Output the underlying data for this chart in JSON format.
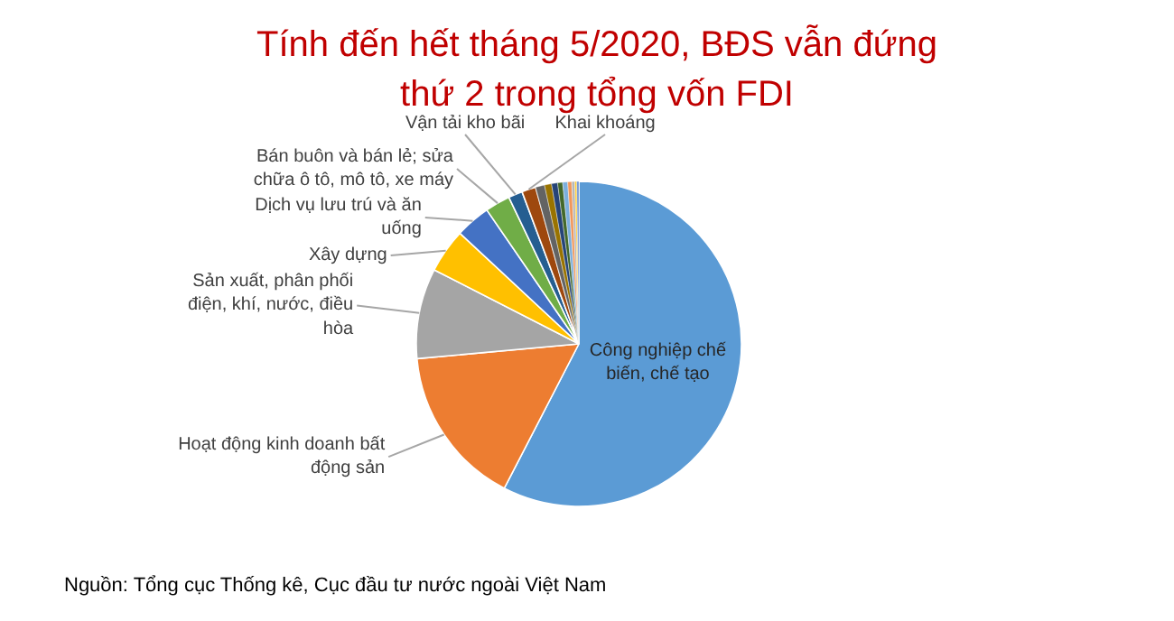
{
  "chart_data": {
    "type": "pie",
    "title": "Tính đến hết tháng 5/2020, BĐS vẫn đứng thứ 2 trong tổng vốn FDI",
    "categories": [
      "Công nghiệp chế biến, chế tạo",
      "Hoạt động kinh doanh bất động sản",
      "Sản xuất, phân phối điện, khí, nước, điều hòa",
      "Xây dựng",
      "Dịch vụ lưu trú và ăn uống",
      "Bán buôn và bán lẻ; sửa chữa ô tô, mô tô, xe máy",
      "Vận tải kho bãi",
      "Khai khoáng",
      null,
      null,
      null,
      null,
      null,
      null,
      null,
      null,
      null
    ],
    "values": [
      57.7,
      16.0,
      9.0,
      4.4,
      3.5,
      2.5,
      1.4,
      1.4,
      0.9,
      0.7,
      0.6,
      0.5,
      0.5,
      0.4,
      0.3,
      0.2,
      0.2
    ],
    "colors": [
      "#5b9bd5",
      "#ed7d31",
      "#a5a5a5",
      "#ffc000",
      "#4472c4",
      "#70ad47",
      "#255e91",
      "#9e480e",
      "#636363",
      "#997300",
      "#264478",
      "#43682b",
      "#7cafdd",
      "#f1975a",
      "#b7b7b7",
      "#ffcd33",
      "#698ed0"
    ],
    "annotations": [
      "Nguồn: Tổng cục Thống kê, Cục đầu tư nước ngoài Việt Nam"
    ]
  }
}
